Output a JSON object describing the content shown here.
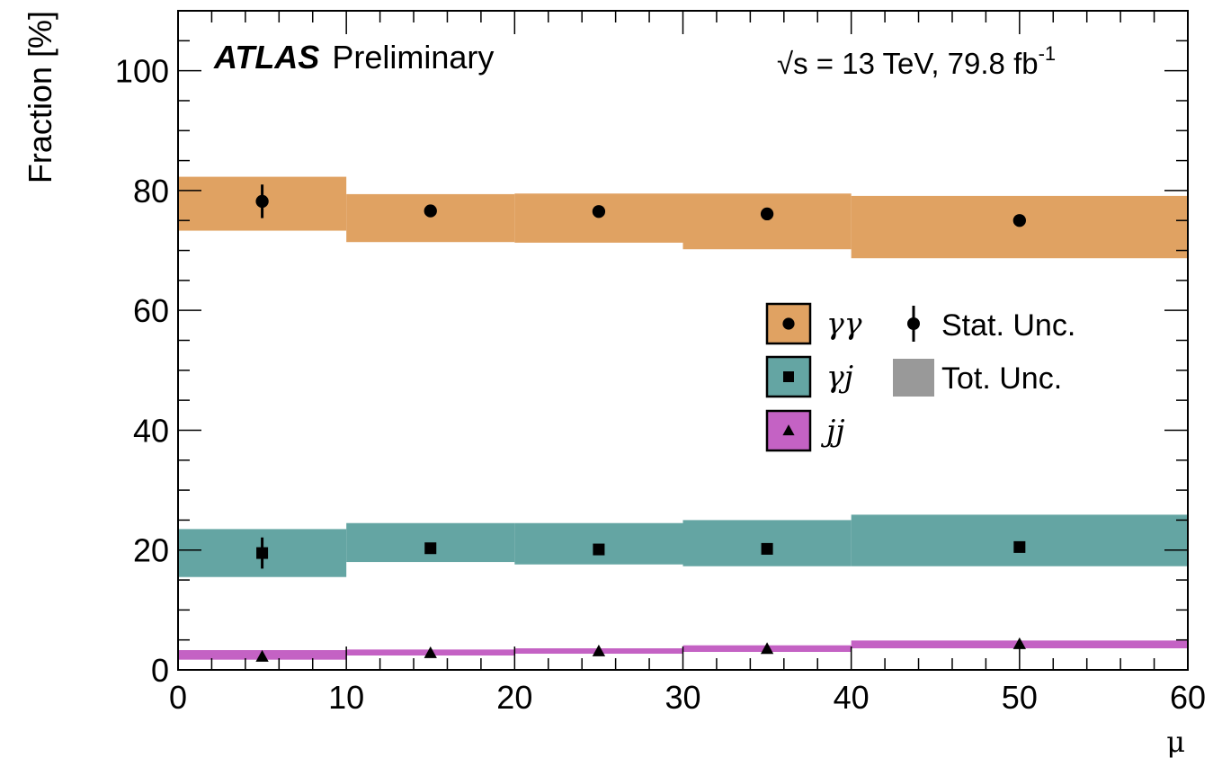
{
  "chart_data": {
    "type": "scatter",
    "title": "",
    "experiment_label": "ATLAS",
    "experiment_sublabel": "Preliminary",
    "energy_label": "√s = 13 TeV, 79.8 fb",
    "energy_label_sup": "-1",
    "xlabel": "μ",
    "ylabel": "Fraction [%]",
    "xlim": [
      0,
      60
    ],
    "ylim": [
      0,
      110
    ],
    "x_ticks": [
      0,
      10,
      20,
      30,
      40,
      50,
      60
    ],
    "y_ticks": [
      0,
      20,
      40,
      60,
      80,
      100
    ],
    "x_bins": [
      [
        0,
        10
      ],
      [
        10,
        20
      ],
      [
        20,
        30
      ],
      [
        30,
        40
      ],
      [
        40,
        60
      ]
    ],
    "x": [
      5,
      15,
      25,
      35,
      50
    ],
    "legend_position": "center-right",
    "series": [
      {
        "name": "γγ",
        "marker": "circle",
        "color": "#e0a262",
        "values": [
          78.2,
          76.6,
          76.5,
          76.1,
          75.0
        ],
        "stat_unc": [
          2.8,
          0.6,
          0.5,
          0.5,
          0.5
        ],
        "tot_low": [
          73.3,
          71.4,
          71.3,
          70.2,
          68.7
        ],
        "tot_high": [
          82.3,
          79.4,
          79.5,
          79.5,
          79.1
        ]
      },
      {
        "name": "γj",
        "marker": "square",
        "color": "#64a5a3",
        "values": [
          19.5,
          20.3,
          20.1,
          20.2,
          20.5
        ],
        "stat_unc": [
          2.6,
          0.6,
          0.5,
          0.5,
          0.5
        ],
        "tot_low": [
          15.5,
          18.0,
          17.6,
          17.3,
          17.3
        ],
        "tot_high": [
          23.5,
          24.5,
          24.5,
          25.0,
          25.9
        ]
      },
      {
        "name": "jj",
        "marker": "triangle",
        "color": "#c462c4",
        "values": [
          2.2,
          2.8,
          3.1,
          3.5,
          4.3
        ],
        "stat_unc": [
          0.3,
          0.2,
          0.2,
          0.2,
          0.2
        ],
        "tot_low": [
          1.7,
          2.4,
          2.7,
          3.0,
          3.6
        ],
        "tot_high": [
          3.3,
          3.4,
          3.6,
          4.1,
          4.9
        ]
      }
    ],
    "legend_extra": [
      {
        "name": "Stat. Unc.",
        "marker": "circle-errorbar"
      },
      {
        "name": "Tot. Unc.",
        "marker": "box",
        "color": "#999999"
      }
    ]
  }
}
